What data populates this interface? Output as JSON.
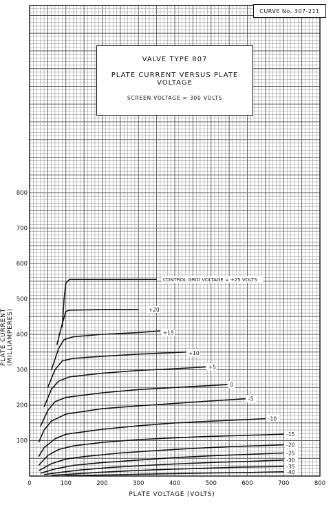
{
  "curve_label": "CURVE No. 307-211",
  "title": {
    "line1": "VALVE TYPE 807",
    "line2": "PLATE CURRENT VERSUS PLATE VOLTAGE",
    "line3": "SCREEN VOLTAGE = 300 VOLTS"
  },
  "chart_data": {
    "type": "line",
    "xlabel": "PLATE VOLTAGE (VOLTS)",
    "ylabel": "PLATE CURRENT (MILLIAMPERES)",
    "xlim": [
      0,
      800
    ],
    "ylim": [
      0,
      800
    ],
    "x_ticks": [
      0,
      100,
      200,
      300,
      400,
      500,
      600,
      700,
      800
    ],
    "y_ticks": [
      100,
      200,
      300,
      400,
      500,
      600,
      700,
      800
    ],
    "grid": true,
    "series": [
      {
        "name": "CONTROL GRID VOLTAGE = +25 VOLTS",
        "label_at": [
          360,
          555
        ],
        "points": [
          [
            90,
            420
          ],
          [
            95,
            500
          ],
          [
            100,
            545
          ],
          [
            110,
            555
          ],
          [
            200,
            555
          ],
          [
            300,
            555
          ],
          [
            350,
            555
          ]
        ]
      },
      {
        "name": "+20",
        "label_at": [
          320,
          470
        ],
        "points": [
          [
            75,
            370
          ],
          [
            90,
            430
          ],
          [
            100,
            465
          ],
          [
            110,
            468
          ],
          [
            200,
            470
          ],
          [
            300,
            470
          ]
        ]
      },
      {
        "name": "+15",
        "label_at": [
          360,
          405
        ],
        "points": [
          [
            60,
            300
          ],
          [
            80,
            360
          ],
          [
            95,
            385
          ],
          [
            120,
            393
          ],
          [
            200,
            400
          ],
          [
            300,
            405
          ],
          [
            360,
            410
          ]
        ]
      },
      {
        "name": "+10",
        "label_at": [
          430,
          348
        ],
        "points": [
          [
            50,
            250
          ],
          [
            70,
            300
          ],
          [
            90,
            325
          ],
          [
            120,
            332
          ],
          [
            200,
            338
          ],
          [
            300,
            344
          ],
          [
            430,
            350
          ]
        ]
      },
      {
        "name": "+5",
        "label_at": [
          485,
          308
        ],
        "points": [
          [
            40,
            195
          ],
          [
            60,
            245
          ],
          [
            80,
            268
          ],
          [
            110,
            280
          ],
          [
            200,
            290
          ],
          [
            300,
            298
          ],
          [
            400,
            303
          ],
          [
            485,
            308
          ]
        ]
      },
      {
        "name": "0",
        "label_at": [
          545,
          258
        ],
        "points": [
          [
            30,
            140
          ],
          [
            50,
            185
          ],
          [
            70,
            210
          ],
          [
            100,
            222
          ],
          [
            200,
            235
          ],
          [
            300,
            244
          ],
          [
            400,
            250
          ],
          [
            545,
            258
          ]
        ]
      },
      {
        "name": "-5",
        "label_at": [
          595,
          218
        ],
        "points": [
          [
            25,
            95
          ],
          [
            40,
            130
          ],
          [
            60,
            155
          ],
          [
            100,
            175
          ],
          [
            200,
            190
          ],
          [
            300,
            198
          ],
          [
            400,
            205
          ],
          [
            500,
            212
          ],
          [
            595,
            218
          ]
        ]
      },
      {
        "name": "-10",
        "label_at": [
          650,
          162
        ],
        "points": [
          [
            25,
            55
          ],
          [
            40,
            80
          ],
          [
            70,
            105
          ],
          [
            100,
            118
          ],
          [
            200,
            132
          ],
          [
            300,
            142
          ],
          [
            400,
            150
          ],
          [
            500,
            155
          ],
          [
            650,
            162
          ]
        ]
      },
      {
        "name": "-15",
        "label_at": [
          700,
          118
        ],
        "points": [
          [
            25,
            30
          ],
          [
            50,
            58
          ],
          [
            80,
            75
          ],
          [
            120,
            85
          ],
          [
            200,
            95
          ],
          [
            300,
            103
          ],
          [
            400,
            108
          ],
          [
            500,
            112
          ],
          [
            600,
            115
          ],
          [
            700,
            118
          ]
        ]
      },
      {
        "name": "-20",
        "label_at": [
          700,
          88
        ],
        "points": [
          [
            25,
            15
          ],
          [
            60,
            35
          ],
          [
            100,
            48
          ],
          [
            150,
            55
          ],
          [
            250,
            65
          ],
          [
            350,
            72
          ],
          [
            450,
            78
          ],
          [
            550,
            83
          ],
          [
            700,
            88
          ]
        ]
      },
      {
        "name": "-25",
        "label_at": [
          700,
          65
        ],
        "points": [
          [
            30,
            8
          ],
          [
            70,
            20
          ],
          [
            120,
            30
          ],
          [
            200,
            38
          ],
          [
            300,
            45
          ],
          [
            400,
            52
          ],
          [
            500,
            57
          ],
          [
            600,
            61
          ],
          [
            700,
            65
          ]
        ]
      },
      {
        "name": "-30",
        "label_at": [
          700,
          45
        ],
        "points": [
          [
            40,
            4
          ],
          [
            80,
            10
          ],
          [
            140,
            17
          ],
          [
            220,
            24
          ],
          [
            320,
            30
          ],
          [
            420,
            35
          ],
          [
            520,
            39
          ],
          [
            620,
            42
          ],
          [
            700,
            45
          ]
        ]
      },
      {
        "name": "-35",
        "label_at": [
          700,
          27
        ],
        "points": [
          [
            60,
            2
          ],
          [
            110,
            5
          ],
          [
            180,
            10
          ],
          [
            280,
            15
          ],
          [
            380,
            19
          ],
          [
            480,
            22
          ],
          [
            580,
            25
          ],
          [
            700,
            27
          ]
        ]
      },
      {
        "name": "-40",
        "label_at": [
          700,
          12
        ],
        "points": [
          [
            100,
            1
          ],
          [
            200,
            3
          ],
          [
            300,
            5
          ],
          [
            400,
            7
          ],
          [
            500,
            9
          ],
          [
            600,
            10
          ],
          [
            700,
            12
          ]
        ]
      }
    ]
  }
}
